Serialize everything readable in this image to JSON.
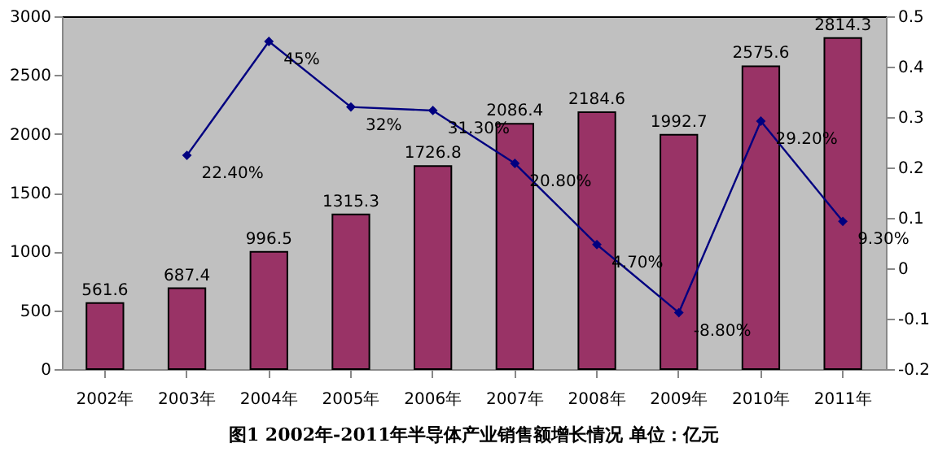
{
  "chart_data": {
    "type": "bar",
    "title": "图1    2002年-2011年半导体产业销售额增长情况 单位：亿元",
    "categories": [
      "2002年",
      "2003年",
      "2004年",
      "2005年",
      "2006年",
      "2007年",
      "2008年",
      "2009年",
      "2010年",
      "2011年"
    ],
    "series": [
      {
        "color": "#993366",
        "values": [
          561.6,
          687.4,
          996.5,
          1315.3,
          1726.8,
          2086.4,
          2184.6,
          1992.7,
          2575.6,
          2814.3
        ],
        "data_labels": true
      },
      {
        "type": "line",
        "axis": "y2",
        "color": "#000080",
        "marker": "diamond",
        "values": [
          null,
          0.224,
          0.45,
          0.32,
          0.313,
          0.208,
          0.047,
          -0.088,
          0.292,
          0.093
        ],
        "value_labels": [
          null,
          "22.40%",
          "45%",
          "32%",
          "31.30%",
          "20.80%",
          "4.70%",
          "-8.80%",
          "29.20%",
          "9.30%"
        ]
      }
    ],
    "ylim": [
      0,
      3000
    ],
    "yticks": [
      0,
      500,
      1000,
      1500,
      2000,
      2500,
      3000
    ],
    "y2lim": [
      -0.2,
      0.5
    ],
    "y2ticks": [
      -0.2,
      -0.1,
      0,
      0.1,
      0.2,
      0.3,
      0.4,
      0.5
    ],
    "grid": false
  }
}
